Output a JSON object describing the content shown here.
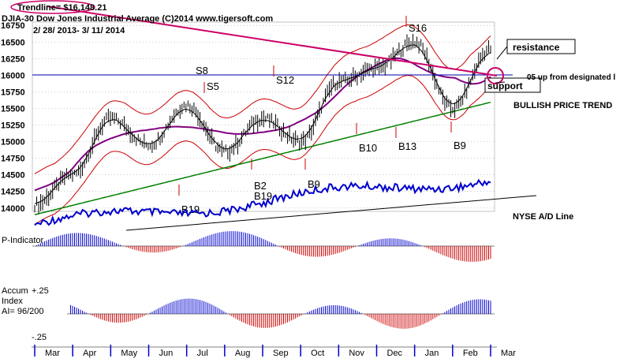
{
  "header": {
    "trendline_label": "Trendline= $16,148.21",
    "title": "DJIA-30  Dow Jones Industrial Average   (C)2014 www.tigersoft.com",
    "date_range": "2/ 28/ 2013- 3/ 11/ 2014"
  },
  "annotations": {
    "resistance": "resistance",
    "support": "support",
    "designated": "05 up from designated l",
    "bullish": "BULLISH PRICE TREND",
    "nyse_ad": "NYSE A/D Line",
    "p_indicator": "P-Indicator",
    "accum_title_1": "Accum",
    "accum_title_2": "Index",
    "accum_ai": "AI= 96/200",
    "accum_top": "+.25",
    "accum_bottom": "-.25"
  },
  "signals": [
    {
      "label": "S8",
      "arrow": false
    },
    {
      "label": "S5",
      "arrow": true
    },
    {
      "label": "S12",
      "arrow": true
    },
    {
      "label": "S16",
      "arrow": true
    },
    {
      "label": "B19",
      "arrow": true
    },
    {
      "label": "B2",
      "arrow": true
    },
    {
      "label": "B19",
      "arrow": true
    },
    {
      "label": "B9",
      "arrow": true
    },
    {
      "label": "B10",
      "arrow": true
    },
    {
      "label": "B13",
      "arrow": true
    },
    {
      "label": "B9",
      "arrow": true
    }
  ],
  "colors": {
    "price": "#000000",
    "upper_band": "#cc0000",
    "purple_ma": "#800080",
    "green_ma": "#008000",
    "blue_line": "#0000cc",
    "trendline": "#cc0066",
    "red_bars": "#cc0000",
    "blue_bars": "#0000cc"
  },
  "chart_data": {
    "type": "line",
    "title": "DJIA-30  Dow Jones Industrial Average",
    "x_months": [
      "Mar",
      "Apr",
      "May",
      "Jun",
      "Jul",
      "Aug",
      "Sep",
      "Oct",
      "Nov",
      "Dec",
      "Jan",
      "Feb",
      "Mar"
    ],
    "y_ticks": [
      14000,
      14250,
      14500,
      14750,
      15000,
      15250,
      15500,
      15750,
      16000,
      16250,
      16500,
      16750
    ],
    "ylim": [
      13950,
      16800
    ],
    "series": [
      {
        "x": [
          "Mar",
          "Apr",
          "May",
          "Jun",
          "Jul",
          "Aug",
          "Sep",
          "Oct",
          "Nov",
          "Dec",
          "Jan",
          "Feb",
          "Mar"
        ],
        "values": [
          14050,
          14500,
          15350,
          14950,
          15550,
          14850,
          15350,
          15000,
          15900,
          16100,
          16500,
          15500,
          16400
        ]
      }
    ],
    "trendline_value": 16148.21,
    "support_level": 16148.21,
    "grid": true
  }
}
